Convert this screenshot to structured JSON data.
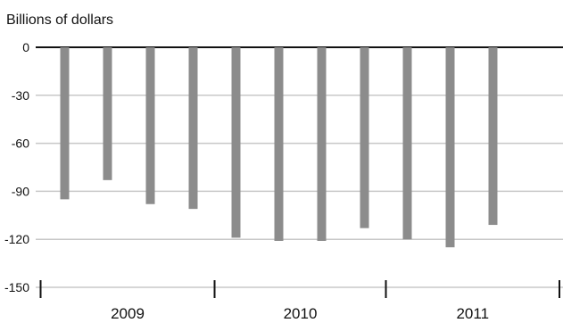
{
  "chart_data": {
    "type": "bar",
    "title": "",
    "xlabel": "",
    "ylabel": "Billions of dollars",
    "ylim": [
      -150,
      0
    ],
    "yticks": [
      0,
      -30,
      -60,
      -90,
      -120,
      -150
    ],
    "ytick_labels": [
      "0",
      "-30",
      "-60",
      "-90",
      "-120",
      "-150"
    ],
    "grid": true,
    "year_labels": [
      "2009",
      "2010",
      "2011"
    ],
    "year_bar_counts": [
      4,
      4,
      3
    ],
    "bar_color": "#8c8c8c",
    "values": [
      -95,
      -83,
      -98,
      -101,
      -119,
      -121,
      -121,
      -113,
      -120,
      -125,
      -111
    ]
  }
}
